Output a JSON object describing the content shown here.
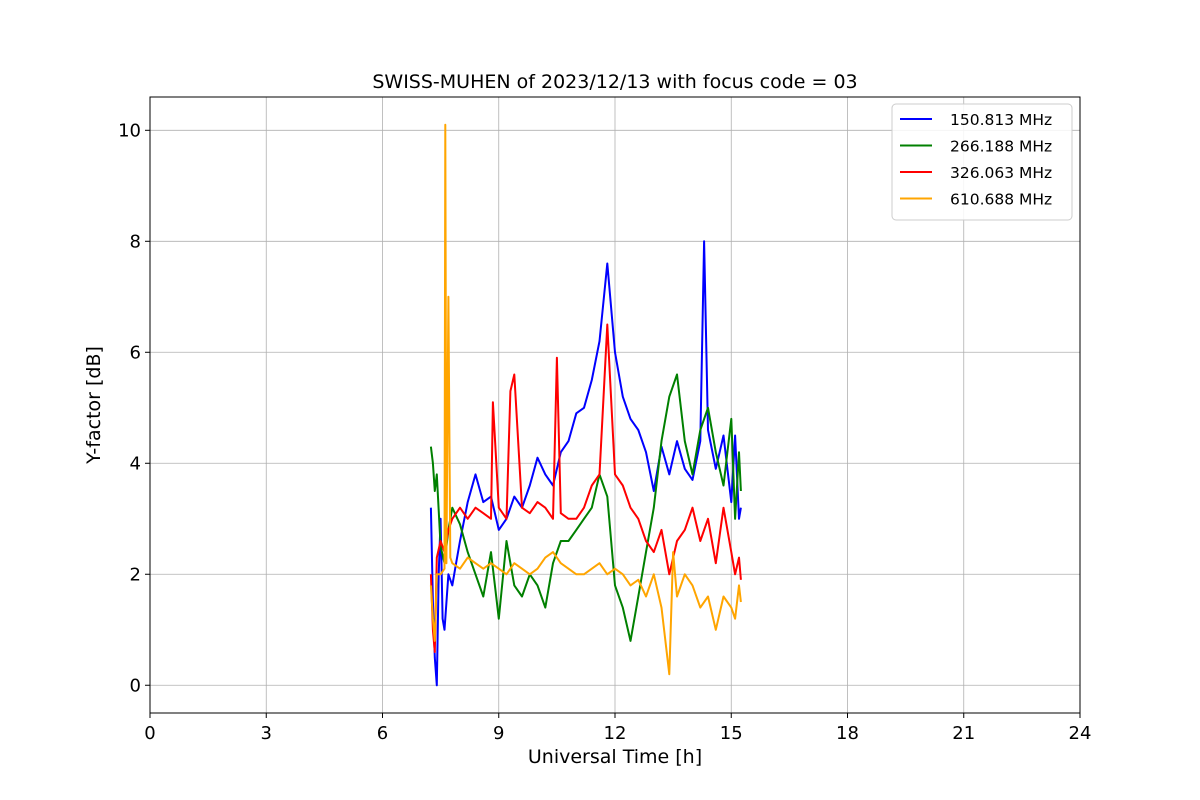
{
  "chart_data": {
    "type": "line",
    "title": "SWISS-MUHEN of 2023/12/13 with focus code = 03",
    "xlabel": "Universal Time [h]",
    "ylabel": "Y-factor [dB]",
    "xlim": [
      0,
      24
    ],
    "ylim": [
      -0.5,
      10.6
    ],
    "xticks": [
      0,
      3,
      6,
      9,
      12,
      15,
      18,
      21,
      24
    ],
    "yticks": [
      0,
      2,
      4,
      6,
      8,
      10
    ],
    "grid": true,
    "legend_position": "top-right",
    "series": [
      {
        "name": "150.813 MHz",
        "color": "#0000ff",
        "x": [
          7.25,
          7.3,
          7.35,
          7.4,
          7.45,
          7.5,
          7.55,
          7.6,
          7.7,
          7.8,
          7.9,
          8.0,
          8.2,
          8.4,
          8.6,
          8.8,
          9.0,
          9.2,
          9.4,
          9.6,
          9.8,
          10.0,
          10.2,
          10.4,
          10.6,
          10.8,
          11.0,
          11.2,
          11.4,
          11.6,
          11.8,
          12.0,
          12.2,
          12.4,
          12.6,
          12.8,
          13.0,
          13.2,
          13.4,
          13.6,
          13.8,
          14.0,
          14.2,
          14.3,
          14.4,
          14.6,
          14.8,
          15.0,
          15.1,
          15.2,
          15.25
        ],
        "y": [
          3.2,
          1.5,
          0.5,
          0.0,
          2.0,
          3.0,
          1.2,
          1.0,
          2.0,
          1.8,
          2.2,
          2.6,
          3.3,
          3.8,
          3.3,
          3.4,
          2.8,
          3.0,
          3.4,
          3.2,
          3.6,
          4.1,
          3.8,
          3.6,
          4.2,
          4.4,
          4.9,
          5.0,
          5.5,
          6.2,
          7.6,
          6.0,
          5.2,
          4.8,
          4.6,
          4.2,
          3.5,
          4.3,
          3.8,
          4.4,
          3.9,
          3.7,
          4.4,
          8.0,
          4.6,
          3.9,
          4.5,
          3.3,
          4.5,
          3.0,
          3.2
        ]
      },
      {
        "name": "266.188 MHz",
        "color": "#008000",
        "x": [
          7.25,
          7.3,
          7.35,
          7.4,
          7.5,
          7.6,
          7.7,
          7.8,
          8.0,
          8.2,
          8.4,
          8.6,
          8.8,
          9.0,
          9.2,
          9.4,
          9.6,
          9.8,
          10.0,
          10.2,
          10.4,
          10.6,
          10.8,
          11.0,
          11.2,
          11.4,
          11.6,
          11.8,
          12.0,
          12.2,
          12.4,
          12.6,
          12.8,
          13.0,
          13.2,
          13.4,
          13.6,
          13.8,
          14.0,
          14.2,
          14.4,
          14.6,
          14.8,
          15.0,
          15.1,
          15.2,
          15.25
        ],
        "y": [
          4.3,
          4.0,
          3.5,
          3.8,
          2.5,
          2.2,
          2.8,
          3.2,
          2.9,
          2.4,
          2.0,
          1.6,
          2.4,
          1.2,
          2.6,
          1.8,
          1.6,
          2.0,
          1.8,
          1.4,
          2.2,
          2.6,
          2.6,
          2.8,
          3.0,
          3.2,
          3.8,
          3.4,
          1.8,
          1.4,
          0.8,
          1.6,
          2.4,
          3.2,
          4.4,
          5.2,
          5.6,
          4.4,
          3.8,
          4.6,
          5.0,
          4.2,
          3.6,
          4.8,
          3.0,
          4.2,
          3.5
        ]
      },
      {
        "name": "326.063 MHz",
        "color": "#ff0000",
        "x": [
          7.25,
          7.3,
          7.35,
          7.4,
          7.5,
          7.6,
          7.7,
          7.8,
          8.0,
          8.2,
          8.4,
          8.6,
          8.8,
          8.85,
          9.0,
          9.2,
          9.3,
          9.4,
          9.6,
          9.8,
          10.0,
          10.2,
          10.4,
          10.5,
          10.6,
          10.8,
          11.0,
          11.2,
          11.4,
          11.6,
          11.8,
          12.0,
          12.2,
          12.4,
          12.6,
          12.8,
          13.0,
          13.2,
          13.4,
          13.6,
          13.8,
          14.0,
          14.2,
          14.4,
          14.6,
          14.8,
          15.0,
          15.1,
          15.2,
          15.25
        ],
        "y": [
          2.0,
          1.0,
          0.6,
          2.3,
          2.6,
          2.4,
          2.8,
          3.0,
          3.2,
          3.0,
          3.2,
          3.1,
          3.0,
          5.1,
          3.2,
          3.0,
          5.3,
          5.6,
          3.2,
          3.1,
          3.3,
          3.2,
          3.0,
          5.9,
          3.1,
          3.0,
          3.0,
          3.2,
          3.6,
          3.8,
          6.5,
          3.8,
          3.6,
          3.2,
          3.0,
          2.6,
          2.4,
          2.8,
          2.0,
          2.6,
          2.8,
          3.2,
          2.6,
          3.0,
          2.2,
          3.2,
          2.4,
          2.0,
          2.3,
          1.9
        ]
      },
      {
        "name": "610.688 MHz",
        "color": "#ffa500",
        "x": [
          7.25,
          7.3,
          7.35,
          7.4,
          7.5,
          7.6,
          7.62,
          7.65,
          7.7,
          7.75,
          7.8,
          8.0,
          8.2,
          8.4,
          8.6,
          8.8,
          9.0,
          9.2,
          9.4,
          9.6,
          9.8,
          10.0,
          10.2,
          10.4,
          10.6,
          10.8,
          11.0,
          11.2,
          11.4,
          11.6,
          11.8,
          12.0,
          12.2,
          12.4,
          12.6,
          12.8,
          13.0,
          13.2,
          13.4,
          13.5,
          13.6,
          13.8,
          14.0,
          14.2,
          14.4,
          14.6,
          14.8,
          15.0,
          15.1,
          15.2,
          15.25
        ],
        "y": [
          1.8,
          1.2,
          0.8,
          2.0,
          2.0,
          2.1,
          10.1,
          2.2,
          7.0,
          2.3,
          2.2,
          2.1,
          2.3,
          2.2,
          2.1,
          2.2,
          2.1,
          2.0,
          2.2,
          2.1,
          2.0,
          2.1,
          2.3,
          2.4,
          2.2,
          2.1,
          2.0,
          2.0,
          2.1,
          2.2,
          2.0,
          2.1,
          2.0,
          1.8,
          1.9,
          1.6,
          2.0,
          1.4,
          0.2,
          2.4,
          1.6,
          2.0,
          1.8,
          1.4,
          1.6,
          1.0,
          1.6,
          1.4,
          1.2,
          1.8,
          1.5
        ]
      }
    ]
  }
}
